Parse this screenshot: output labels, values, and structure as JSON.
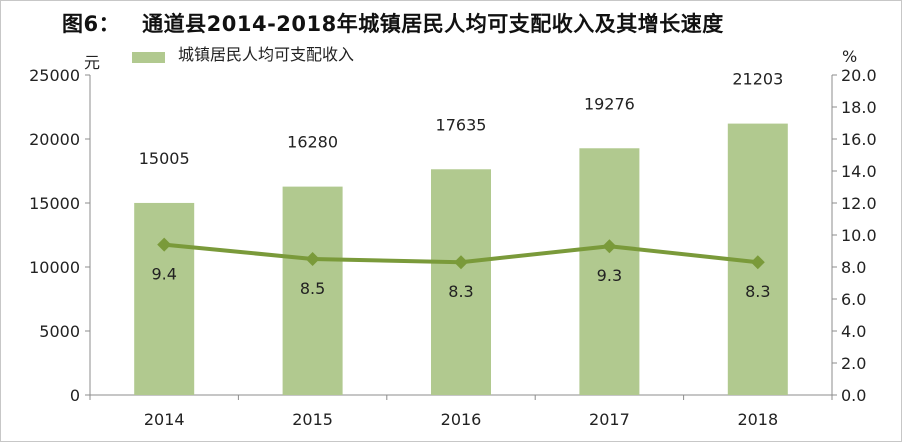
{
  "chart_data": {
    "type": "bar",
    "title_prefix": "图6：",
    "title": "通道县2014-2018年城镇居民人均可支配收入及其增长速度",
    "left_unit": "元",
    "right_unit": "%",
    "categories": [
      "2014",
      "2015",
      "2016",
      "2017",
      "2018"
    ],
    "series": [
      {
        "name": "城镇居民人均可支配收入",
        "type": "bar",
        "axis": "left",
        "color": "#b1c98f",
        "values": [
          15005,
          16280,
          17635,
          19276,
          21203
        ]
      },
      {
        "type": "line",
        "axis": "right",
        "color": "#7a9a3a",
        "values": [
          9.4,
          8.5,
          8.3,
          9.3,
          8.3
        ]
      }
    ],
    "left_axis": {
      "ylim": [
        0,
        25000
      ],
      "ticks": [
        "0",
        "5000",
        "10000",
        "15000",
        "20000",
        "25000"
      ]
    },
    "right_axis": {
      "ylim": [
        0,
        20
      ],
      "ticks": [
        "0.0",
        "2.0",
        "4.0",
        "6.0",
        "8.0",
        "10.0",
        "12.0",
        "14.0",
        "16.0",
        "18.0",
        "20.0"
      ]
    },
    "grid": false,
    "legend_position": "top-left",
    "bar_labels": [
      "15005",
      "16280",
      "17635",
      "19276",
      "21203"
    ],
    "line_labels": [
      "9.4",
      "8.5",
      "8.3",
      "9.3",
      "8.3"
    ]
  }
}
